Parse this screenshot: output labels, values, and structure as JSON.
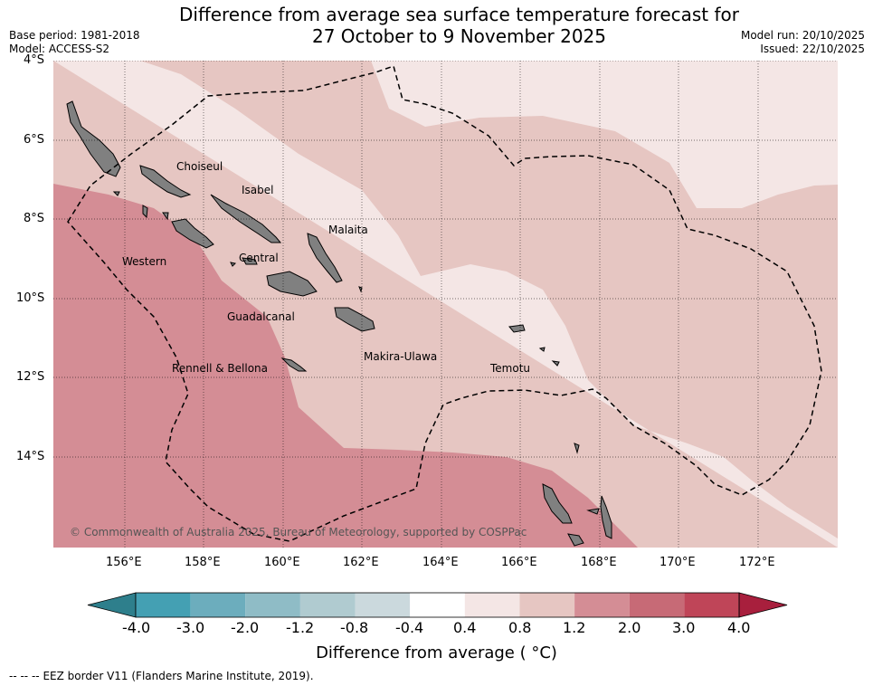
{
  "header": {
    "title_line1": "Difference from average sea surface temperature forecast for",
    "title_line2": "27 October to 9 November 2025",
    "base_period": "Base period: 1981-2018",
    "model": "Model: ACCESS-S2",
    "model_run": "Model run: 20/10/2025",
    "issued": "Issued: 22/10/2025"
  },
  "map": {
    "lat_labels": [
      "4°S",
      "6°S",
      "8°S",
      "10°S",
      "12°S",
      "14°S"
    ],
    "lon_labels": [
      "156°E",
      "158°E",
      "160°E",
      "162°E",
      "164°E",
      "166°E",
      "168°E",
      "170°E",
      "172°E"
    ],
    "provinces": [
      {
        "name": "Choiseul"
      },
      {
        "name": "Isabel"
      },
      {
        "name": "Malaita"
      },
      {
        "name": "Western"
      },
      {
        "name": "Central"
      },
      {
        "name": "Guadalcanal"
      },
      {
        "name": "Makira-Ulawa"
      },
      {
        "name": "Temotu"
      },
      {
        "name": "Rennell & Bellona"
      }
    ],
    "copyright": "© Commonwealth of Australia 2025, Bureau of Meteorology, supported by COSPPac",
    "colors": {
      "anom_0_4_0_8": "#f4e6e5",
      "anom_0_8_1_2": "#e6c6c2",
      "anom_1_2_2_0": "#d48d95",
      "land": "#808080",
      "eez_line": "#000000"
    }
  },
  "colorbar": {
    "title": "Difference from average ( °C)",
    "tick_labels": [
      "-4.0",
      "-3.0",
      "-2.0",
      "-1.2",
      "-0.8",
      "-0.4",
      "0.4",
      "0.8",
      "1.2",
      "2.0",
      "3.0",
      "4.0"
    ],
    "colors": [
      "#2e7f8c",
      "#44a0b3",
      "#6cadbd",
      "#8fbcc6",
      "#b0cbd0",
      "#cbd9dd",
      "#ffffff",
      "#f4e6e5",
      "#e6c6c2",
      "#d48d95",
      "#c76a76",
      "#bf4558",
      "#a81f3d"
    ]
  },
  "legend": {
    "eez_line_symbol": "-- -- --",
    "eez_label": "EEZ border V11 (Flanders Marine Institute, 2019)."
  }
}
